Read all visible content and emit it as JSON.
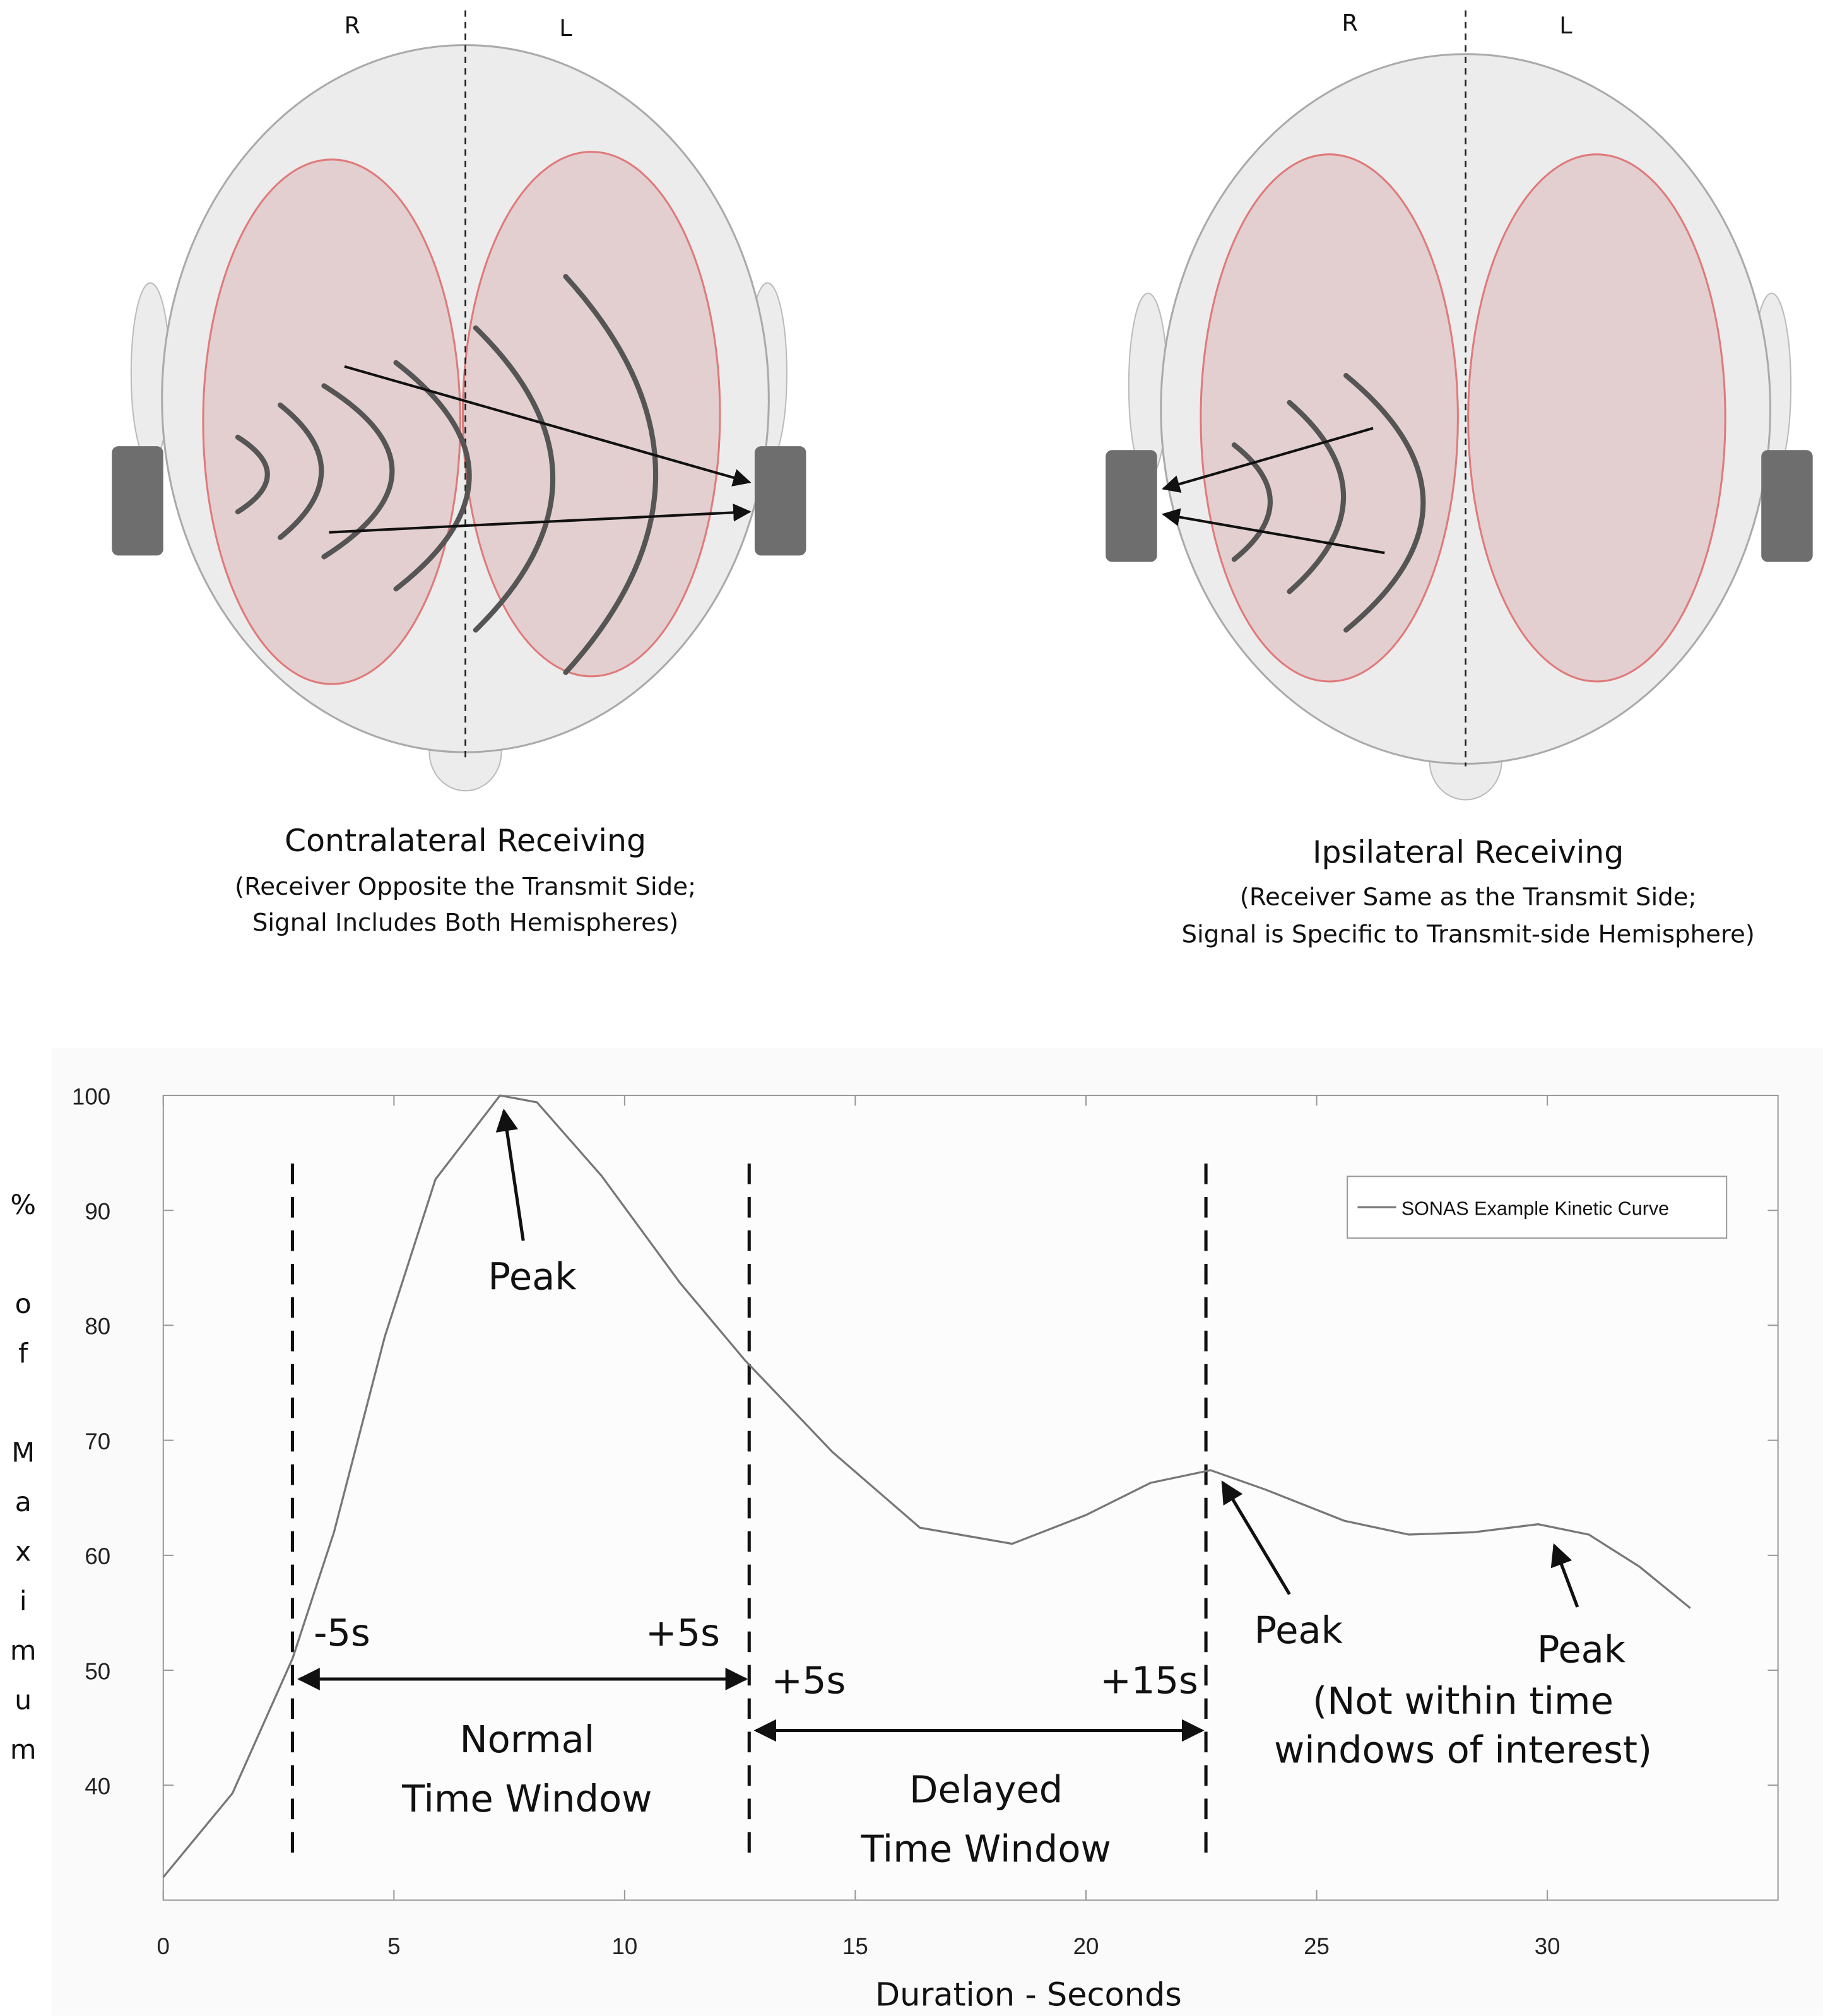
{
  "diagrams": [
    {
      "labels": [
        "R",
        "L"
      ],
      "title": "Contralateral Receiving",
      "subtitle": [
        "(Receiver Opposite the Transmit Side;",
        "Signal Includes Both Hemispheres)"
      ]
    },
    {
      "labels": [
        "R",
        "L"
      ],
      "title": "Ipsilateral Receiving",
      "subtitle": [
        "(Receiver Same as the Transmit Side;",
        "Signal is Specific to Transmit-side Hemisphere)"
      ]
    }
  ],
  "chart_data": {
    "type": "line",
    "x": [
      0,
      1.5,
      2.8,
      3.7,
      4.8,
      5.9,
      7.3,
      8.1,
      9.5,
      11.2,
      12.6,
      14.5,
      16.4,
      18.4,
      20,
      21.4,
      22.7,
      23.9,
      25.6,
      27,
      28.4,
      29.8,
      30.9,
      32,
      33.1
    ],
    "series": [
      {
        "name": "SONAS Example Kinetic Curve",
        "color": "#777777",
        "values": [
          32,
          39.3,
          51,
          62,
          79,
          92.7,
          100,
          99.4,
          93,
          83.7,
          77,
          69,
          62.4,
          61,
          63.5,
          66.3,
          67.4,
          65.7,
          63,
          61.8,
          62,
          62.7,
          61.8,
          59,
          55.4
        ]
      }
    ],
    "xlim": [
      0,
      35
    ],
    "xticks": [
      0,
      5,
      10,
      15,
      20,
      25,
      30
    ],
    "ylim": [
      30,
      100
    ],
    "yticks": [
      40,
      50,
      60,
      70,
      80,
      90,
      100
    ],
    "x_label": "Duration - Seconds",
    "y_label": "% of Maximum",
    "window_lines": [
      2.8,
      12.7,
      22.6
    ],
    "legend": "upper right",
    "annotations": [
      "Peak",
      "-5s",
      "+5s",
      "+5s",
      "+15s",
      "Peak",
      "Peak",
      "Normal",
      "Time Window",
      "Delayed",
      "Time Window",
      "(Not within time",
      "windows of interest)"
    ]
  }
}
